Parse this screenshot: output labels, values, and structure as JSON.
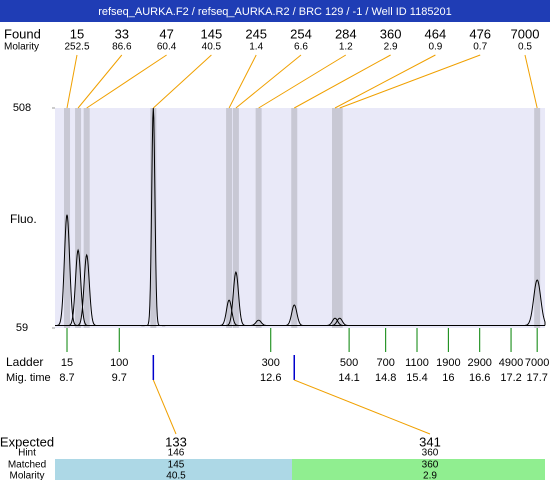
{
  "header": {
    "title": "refseq_AURKA.F2 / refseq_AURKA.R2 / BRC 129 / -1 / Well ID 1185201"
  },
  "found": {
    "label": "Found",
    "sizes": [
      15,
      33,
      47,
      145,
      245,
      254,
      284,
      360,
      464,
      476,
      7000
    ]
  },
  "molarity": {
    "label": "Molarity",
    "values": [
      252.5,
      86.6,
      60.4,
      40.5,
      1.4,
      6.6,
      1.2,
      2.9,
      0.9,
      0.7,
      0.5
    ]
  },
  "fluo": {
    "label": "Fluo.",
    "ylim": [
      59,
      508
    ],
    "yticks": [
      59,
      508
    ],
    "baseline": 64,
    "peaks": [
      290,
      218,
      208,
      508,
      116,
      173,
      75,
      106,
      79,
      79,
      157
    ]
  },
  "ladder": {
    "label": "Ladder",
    "sizes": [
      15,
      100,
      300,
      500,
      700,
      1100,
      1900,
      2900,
      4900,
      7000
    ]
  },
  "mig_time": {
    "label": "Mig. time",
    "values": [
      8.7,
      9.7,
      12.6,
      14.1,
      14.8,
      15.4,
      16,
      16.6,
      17.2,
      17.7
    ],
    "xlim": [
      8.47,
      17.85
    ]
  },
  "results": {
    "labels": [
      "Expected",
      "Hint",
      "Matched",
      "Molarity"
    ],
    "columns": [
      {
        "expected": 133,
        "hint": 146,
        "matched": 145,
        "molarity": 40.5
      },
      {
        "expected": 341,
        "hint": 360,
        "matched": 360,
        "molarity": 2.9
      }
    ]
  }
}
